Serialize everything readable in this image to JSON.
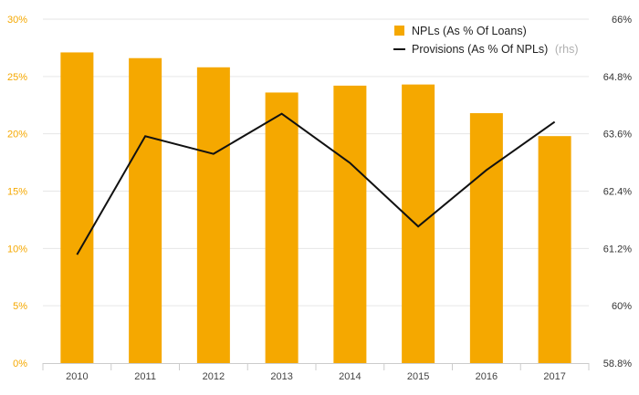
{
  "chart_data": {
    "type": "bar",
    "categories": [
      "2010",
      "2011",
      "2012",
      "2013",
      "2014",
      "2015",
      "2016",
      "2017"
    ],
    "series": [
      {
        "name": "NPLs (As % Of Loans)",
        "type": "bar",
        "axis": "left",
        "color": "#f5a800",
        "values": [
          27.1,
          26.6,
          25.8,
          23.6,
          24.2,
          24.3,
          21.8,
          19.8
        ]
      },
      {
        "name": "Provisions (As % Of NPLs)",
        "legend_suffix": "(rhs)",
        "type": "line",
        "axis": "right",
        "color": "#111111",
        "values": [
          61.07,
          63.55,
          63.18,
          64.02,
          62.99,
          61.66,
          62.84,
          63.85
        ]
      }
    ],
    "y_left": {
      "ylim": [
        0,
        30
      ],
      "ticks": [
        0,
        5,
        10,
        15,
        20,
        25,
        30
      ],
      "tick_labels": [
        "0%",
        "5%",
        "10%",
        "15%",
        "20%",
        "25%",
        "30%"
      ]
    },
    "y_right": {
      "ylim": [
        58.8,
        66
      ],
      "ticks": [
        58.8,
        60,
        61.2,
        62.4,
        63.6,
        64.8,
        66
      ],
      "tick_labels": [
        "58.8%",
        "60%",
        "61.2%",
        "62.4%",
        "63.6%",
        "64.8%",
        "66%"
      ]
    },
    "grid": true,
    "legend_position": "top-right"
  }
}
